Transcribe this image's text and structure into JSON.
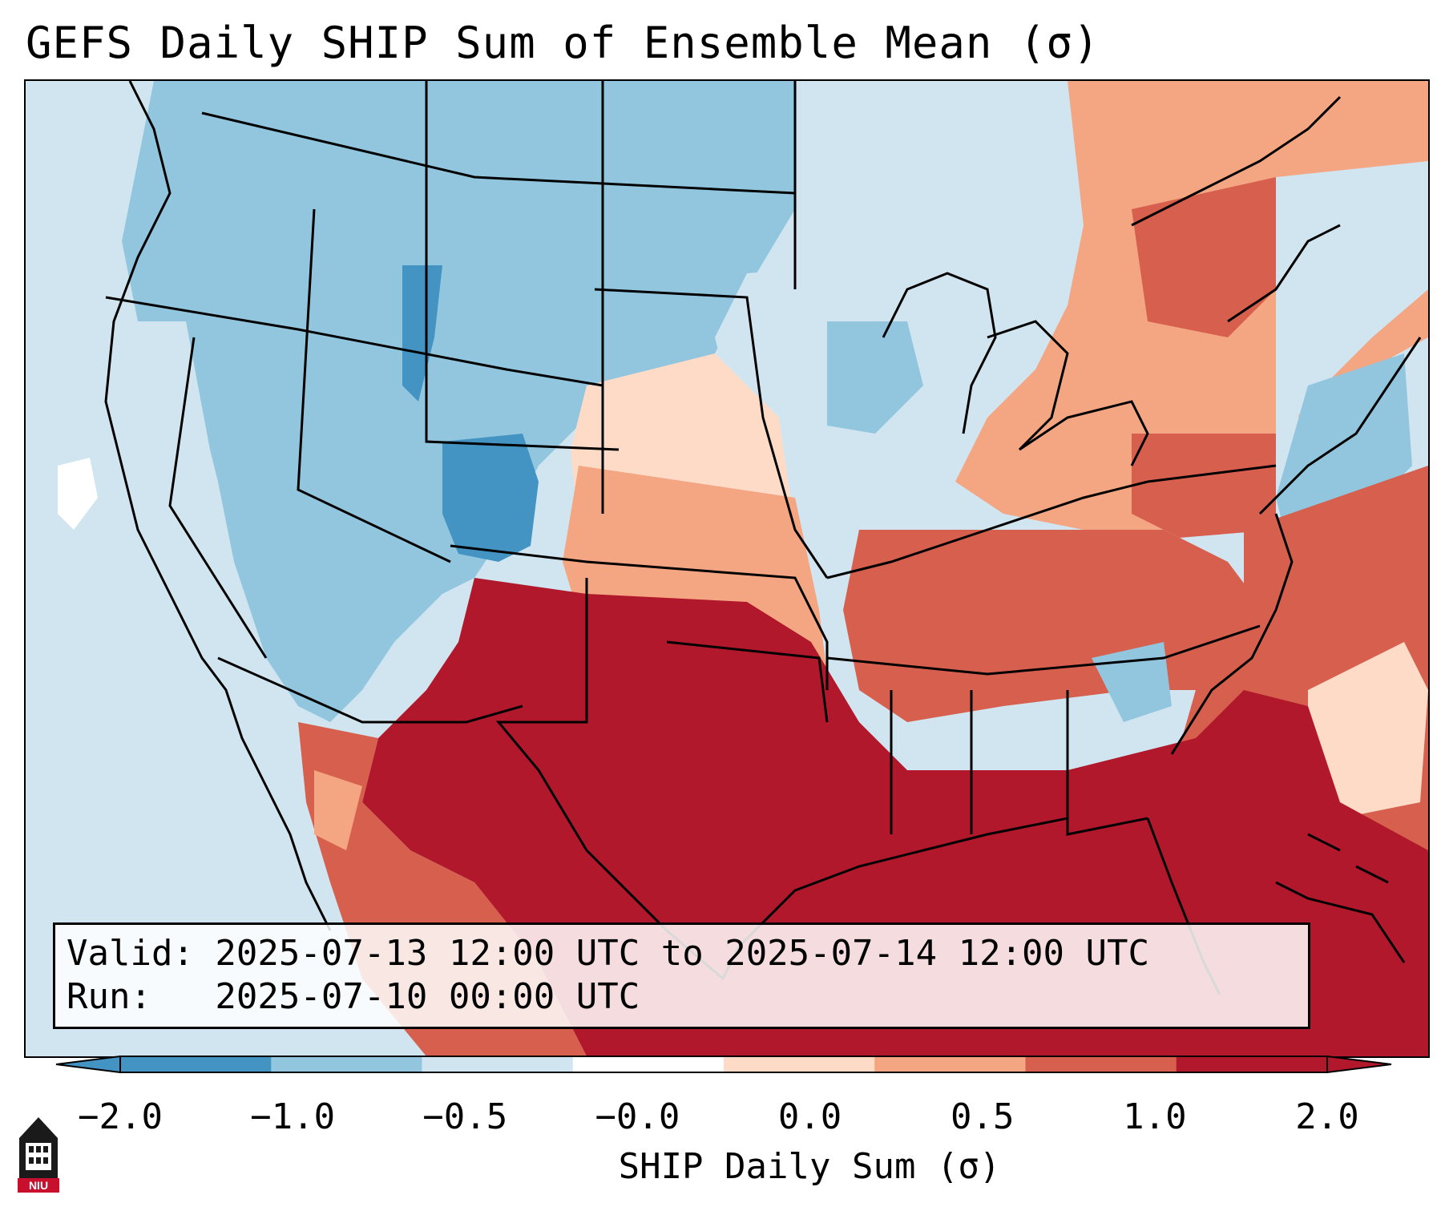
{
  "title": "GEFS Daily SHIP Sum of Ensemble Mean (σ)",
  "info": {
    "valid_line": "Valid: 2025-07-13 12:00 UTC to 2025-07-14 12:00 UTC",
    "run_line": "Run:   2025-07-10 00:00 UTC"
  },
  "colorbar": {
    "label": "SHIP Daily Sum (σ)",
    "ticks": [
      "−2.0",
      "−1.0",
      "−0.5",
      "−0.0",
      "0.0",
      "0.5",
      "1.0",
      "2.0"
    ],
    "colors": [
      "#4393c3",
      "#92c5de",
      "#d1e5f0",
      "#ffffff",
      "#fddbc7",
      "#f4a582",
      "#d6604d",
      "#b2182b"
    ],
    "extend": "both"
  },
  "logo": {
    "text": "NIU",
    "icon": "niu-logo-icon"
  },
  "map": {
    "region": "Contiguous United States",
    "ocean_color": "#d1e5f0",
    "dominant_pattern": "negative anomalies west and north, strong positive anomalies over southern plains, Gulf Coast and southeast"
  }
}
